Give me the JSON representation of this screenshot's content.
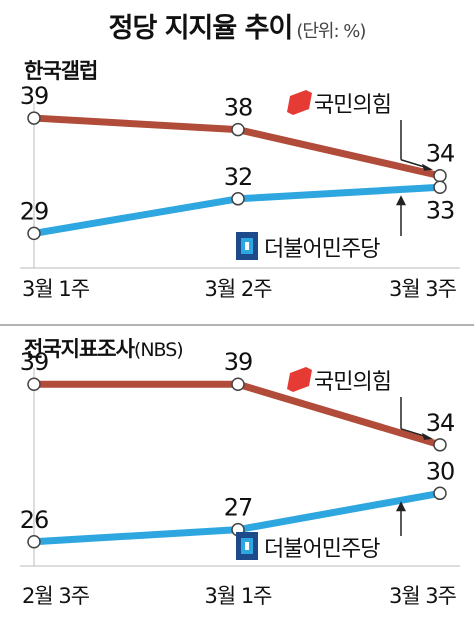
{
  "title": "정당 지지율 추이",
  "unit": "(단위: %)",
  "colors": {
    "ppp": "#b24c3a",
    "dp": "#2ea6df",
    "ppp_logo": "#e63b35",
    "dp_logo_dark": "#1c4a8a",
    "dp_logo_light": "#2ea6df",
    "divider": "#999999",
    "arrow": "#222222"
  },
  "chart_data": [
    {
      "type": "line",
      "title_bold": "한국갤럽",
      "title_source": "",
      "categories": [
        "3월 1주",
        "3월 2주",
        "3월 3주"
      ],
      "series": [
        {
          "name": "국민의힘",
          "values": [
            39,
            38,
            34
          ]
        },
        {
          "name": "더불어민주당",
          "values": [
            29,
            32,
            33
          ]
        }
      ],
      "ylim": [
        26,
        41
      ]
    },
    {
      "type": "line",
      "title_bold": "전국지표조사",
      "title_source": "(NBS)",
      "categories": [
        "2월 3주",
        "3월 1주",
        "3월 3주"
      ],
      "series": [
        {
          "name": "국민의힘",
          "values": [
            39,
            39,
            34
          ]
        },
        {
          "name": "더불어민주당",
          "values": [
            26,
            27,
            30
          ]
        }
      ],
      "ylim": [
        24,
        41
      ]
    }
  ]
}
